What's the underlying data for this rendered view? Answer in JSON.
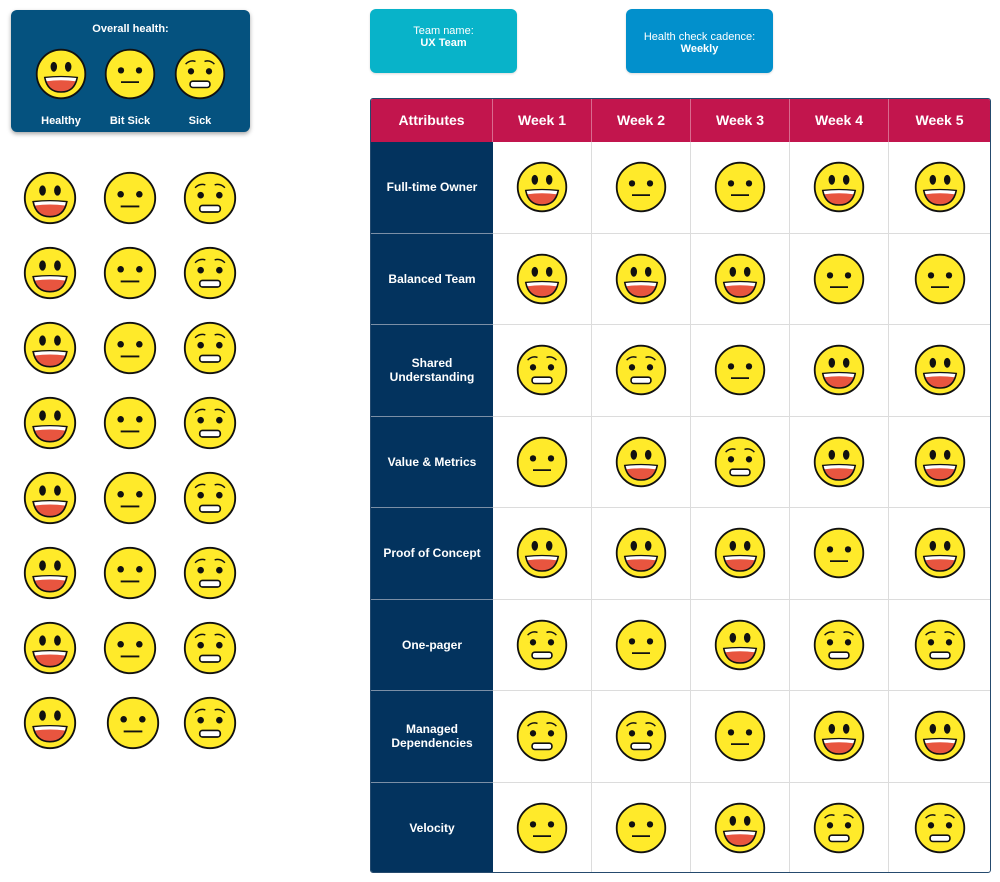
{
  "legend": {
    "title": "Overall health:",
    "items": [
      {
        "state": "healthy",
        "label": "Healthy"
      },
      {
        "state": "bit-sick",
        "label": "Bit Sick"
      },
      {
        "state": "sick",
        "label": "Sick"
      }
    ]
  },
  "team_card": {
    "label": "Team name:",
    "value": "UX Team",
    "color": "#08b3c9"
  },
  "cadence_card": {
    "label": "Health check cadence:",
    "value": "Weekly",
    "color": "#0290cc"
  },
  "palette": {
    "rows": 8,
    "columns": [
      "healthy",
      "bit-sick",
      "sick"
    ]
  },
  "table": {
    "header_color": "#c2154d",
    "label_color": "#03335e",
    "columns": [
      "Attributes",
      "Week 1",
      "Week 2",
      "Week 3",
      "Week 4",
      "Week 5"
    ],
    "rows": [
      {
        "attribute": "Full-time Owner",
        "weeks": [
          "healthy",
          "bit-sick",
          "bit-sick",
          "healthy",
          "healthy"
        ]
      },
      {
        "attribute": "Balanced Team",
        "weeks": [
          "healthy",
          "healthy",
          "healthy",
          "bit-sick",
          "bit-sick"
        ]
      },
      {
        "attribute": "Shared Understanding",
        "weeks": [
          "sick",
          "sick",
          "bit-sick",
          "healthy",
          "healthy"
        ]
      },
      {
        "attribute": "Value & Metrics",
        "weeks": [
          "bit-sick",
          "healthy",
          "sick",
          "healthy",
          "healthy"
        ]
      },
      {
        "attribute": "Proof of Concept",
        "weeks": [
          "healthy",
          "healthy",
          "healthy",
          "bit-sick",
          "healthy"
        ]
      },
      {
        "attribute": "One-pager",
        "weeks": [
          "sick",
          "bit-sick",
          "healthy",
          "sick",
          "sick"
        ]
      },
      {
        "attribute": "Managed Dependencies",
        "weeks": [
          "sick",
          "sick",
          "bit-sick",
          "healthy",
          "healthy"
        ]
      },
      {
        "attribute": "Velocity",
        "weeks": [
          "bit-sick",
          "bit-sick",
          "healthy",
          "sick",
          "sick"
        ]
      }
    ]
  },
  "face_colors": {
    "fill": "#ffea2a",
    "stroke": "#111111",
    "mouth": "#e8553f"
  }
}
